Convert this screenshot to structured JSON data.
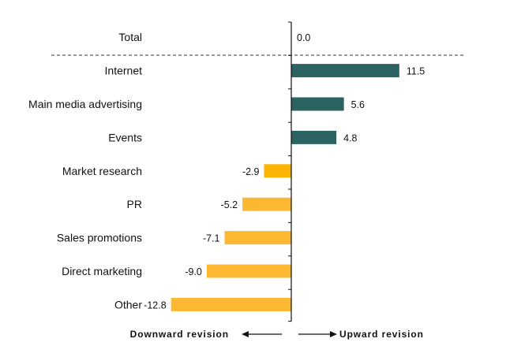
{
  "chart_data": {
    "type": "bar",
    "orientation": "horizontal",
    "title": "",
    "xlabel": "",
    "ylabel": "",
    "categories": [
      "Total",
      "Internet",
      "Main media advertising",
      "Events",
      "Market research",
      "PR",
      "Sales promotions",
      "Direct marketing",
      "Other"
    ],
    "values": [
      0.0,
      11.5,
      5.6,
      4.8,
      -2.9,
      -5.2,
      -7.1,
      -9.0,
      -12.8
    ],
    "value_labels": [
      "0.0",
      "11.5",
      "5.6",
      "4.8",
      "-2.9",
      "-5.2",
      "-7.1",
      "-9.0",
      "-12.8"
    ],
    "xlim": [
      -12.8,
      18.3
    ],
    "grid": false,
    "separator": "dashed line below Total",
    "colors": {
      "positive": "#2a6361",
      "negative": "#fdb833",
      "negative_first": "#fbb500",
      "axis": "#111111"
    },
    "direction_labels": {
      "left": "Downward revision",
      "right": "Upward revision"
    }
  }
}
